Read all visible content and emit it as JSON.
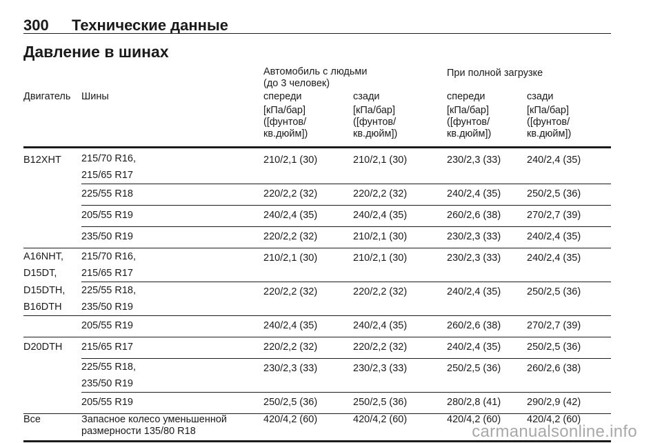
{
  "header": {
    "page_number": "300",
    "chapter": "Технические данные"
  },
  "section_title": "Давление в шинах",
  "columns": {
    "group_empty": "Автомобиль с людьми",
    "group_empty_sub": "(до 3 человек)",
    "group_full": "При полной загрузке",
    "engine": "Двигатель",
    "tires": "Шины",
    "front": "спереди",
    "rear": "сзади",
    "unit_line1": "[кПа/бар]",
    "unit_line2": "([фунтов/",
    "unit_line3": "кв.дюйм])"
  },
  "rows": [
    {
      "engine": "B12XHT",
      "tire": "215/70 R16,",
      "tire2": "215/65 R17",
      "v1": "210/2,1 (30)",
      "v2": "210/2,1 (30)",
      "v3": "230/2,3 (33)",
      "v4": "240/2,4 (35)"
    },
    {
      "engine": "",
      "tire": "225/55 R18",
      "v1": "220/2,2 (32)",
      "v2": "220/2,2 (32)",
      "v3": "240/2,4 (35)",
      "v4": "250/2,5 (36)"
    },
    {
      "engine": "",
      "tire": "205/55 R19",
      "v1": "240/2,4 (35)",
      "v2": "240/2,4 (35)",
      "v3": "260/2,6 (38)",
      "v4": "270/2,7 (39)"
    },
    {
      "engine": "",
      "tire": "235/50 R19",
      "v1": "220/2,2 (32)",
      "v2": "210/2,1 (30)",
      "v3": "230/2,3 (33)",
      "v4": "240/2,4 (35)"
    },
    {
      "engine": "A16NHT,",
      "engine2": "D15DT,",
      "tire": "215/70 R16,",
      "tire2": "215/65 R17",
      "v1": "210/2,1 (30)",
      "v2": "210/2,1 (30)",
      "v3": "230/2,3 (33)",
      "v4": "240/2,4 (35)"
    },
    {
      "engine": "D15DTH,",
      "engine2": "B16DTH",
      "tire": "225/55 R18,",
      "tire2": "235/50 R19",
      "v1": "220/2,2 (32)",
      "v2": "220/2,2 (32)",
      "v3": "240/2,4 (35)",
      "v4": "250/2,5 (36)"
    },
    {
      "engine": "",
      "tire": "205/55 R19",
      "v1": "240/2,4 (35)",
      "v2": "240/2,4 (35)",
      "v3": "260/2,6 (38)",
      "v4": "270/2,7 (39)"
    },
    {
      "engine": "D20DTH",
      "tire": "215/65 R17",
      "v1": "220/2,2 (32)",
      "v2": "220/2,2 (32)",
      "v3": "240/2,4 (35)",
      "v4": "250/2,5 (36)"
    },
    {
      "engine": "",
      "tire": "225/55 R18,",
      "tire2": "235/50 R19",
      "v1": "230/2,3 (33)",
      "v2": "230/2,3 (33)",
      "v3": "250/2,5 (36)",
      "v4": "260/2,6 (38)"
    },
    {
      "engine": "",
      "tire": "205/55 R19",
      "v1": "250/2,5 (36)",
      "v2": "250/2,5 (36)",
      "v3": "280/2,8 (41)",
      "v4": "290/2,9 (42)"
    },
    {
      "engine": "Все",
      "tire": "Запасное колесо уменьшенной",
      "tire2": "размерности 135/80 R18",
      "v1": "420/4,2 (60)",
      "v2": "420/4,2 (60)",
      "v3": "420/4,2 (60)",
      "v4": "420/4,2 (60)"
    }
  ],
  "watermark": "carmanualsonline.info"
}
